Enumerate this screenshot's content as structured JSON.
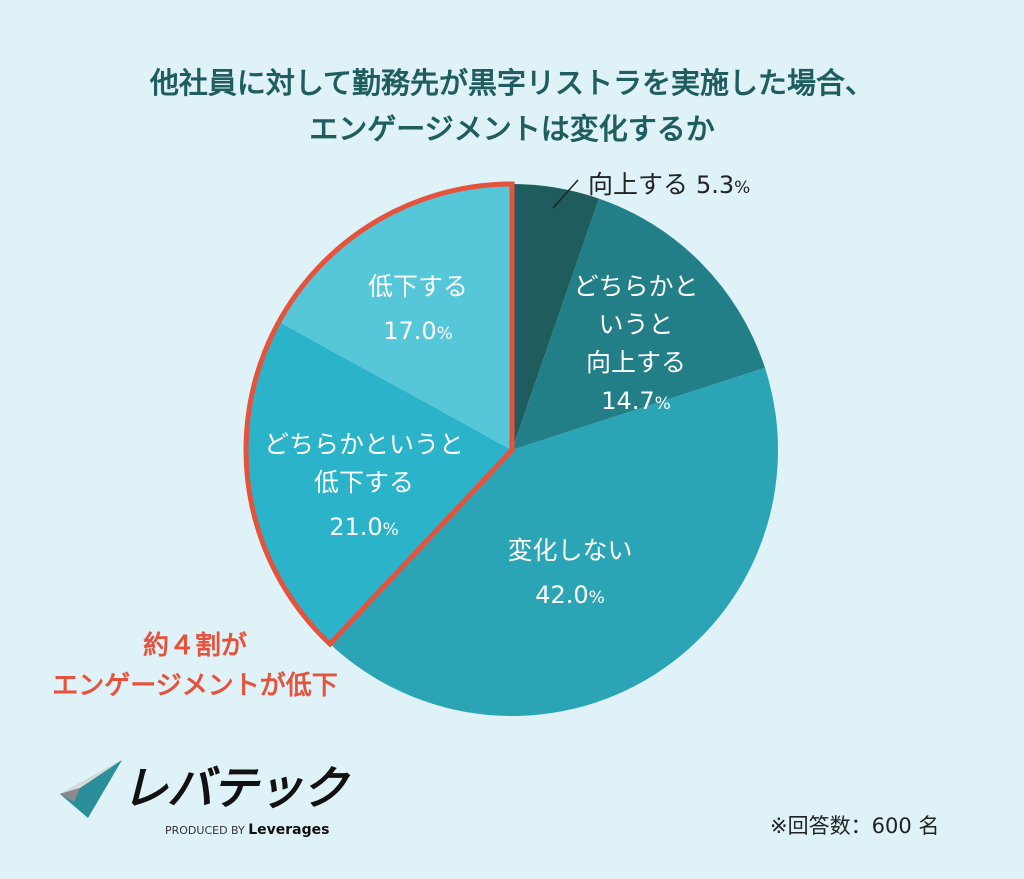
{
  "title_lines": [
    "他社員に対して勤務先が黒字リストラを実施した場合、",
    "エンゲージメントは変化するか"
  ],
  "chart_data": {
    "type": "pie",
    "title": "他社員に対して勤務先が黒字リストラを実施した場合、エンゲージメントは変化するか",
    "unit": "%",
    "slices": [
      {
        "label": "向上する",
        "value": 5.3,
        "value_text": "5.3",
        "color": "#1e5c5e"
      },
      {
        "label": "どちらかというと向上する",
        "value": 14.7,
        "value_text": "14.7",
        "color": "#237f87"
      },
      {
        "label": "変化しない",
        "value": 42.0,
        "value_text": "42.0",
        "color": "#2ba5b6"
      },
      {
        "label": "どちらかというと低下する",
        "value": 21.0,
        "value_text": "21.0",
        "color": "#2bb3c9"
      },
      {
        "label": "低下する",
        "value": 17.0,
        "value_text": "17.0",
        "color": "#56c6d9"
      }
    ],
    "start": "top",
    "direction": "clockwise",
    "highlight": {
      "slices": [
        "どちらかというと低下する",
        "低下する"
      ],
      "color": "#e5533d"
    }
  },
  "labels": {
    "s0": "向上する",
    "s1": [
      "どちらかと",
      "いうと",
      "向上する"
    ],
    "s2": "変化しない",
    "s3": [
      "どちらかというと",
      "低下する"
    ],
    "s4": "低下する",
    "pct": "%"
  },
  "callout": [
    "約４割が",
    "エンゲージメントが低下"
  ],
  "note": "※回答数：600 名",
  "logo": {
    "text": "レバテック",
    "produced_by": "PRODUCED BY",
    "brand": "Leverages"
  }
}
